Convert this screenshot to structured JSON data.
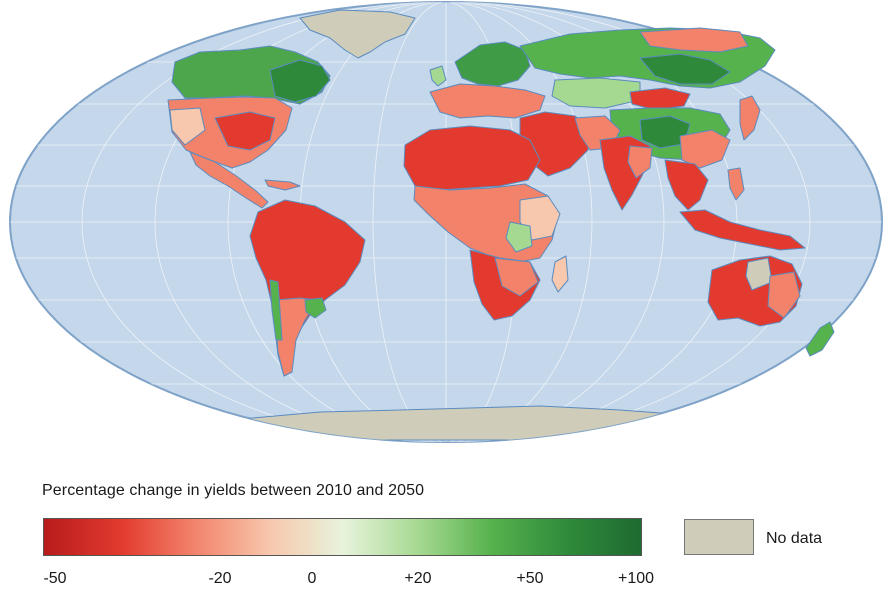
{
  "colors": {
    "ocean": "#c5d7ea",
    "ocean_border": "#7fa3c8",
    "coast": "#5b8bbf",
    "no_data": "#cfcdb9",
    "scale": [
      "#b71c1c",
      "#e23a2e",
      "#f2826a",
      "#f7c8ad",
      "#e8f3dc",
      "#a5d890",
      "#55b24c",
      "#2e8a3a",
      "#1f6a31"
    ]
  },
  "legend": {
    "title": "Percentage change in yields between 2010 and 2050",
    "ticks": [
      "-50",
      "-20",
      "0",
      "+20",
      "+50",
      "+100"
    ],
    "no_data_label": "No data"
  },
  "regions": [
    {
      "name": "Canada",
      "value": "+20 to +50"
    },
    {
      "name": "United States",
      "value": "-20 to 0"
    },
    {
      "name": "Central America",
      "value": "-20"
    },
    {
      "name": "South America north",
      "value": "-50 to -20"
    },
    {
      "name": "South America south",
      "value": "-20 to +20"
    },
    {
      "name": "Greenland",
      "value": "No data"
    },
    {
      "name": "Europe north",
      "value": "+20 to +50"
    },
    {
      "name": "Europe south",
      "value": "-20 to 0"
    },
    {
      "name": "Russia",
      "value": "+20 to +100"
    },
    {
      "name": "North Africa",
      "value": "-50 to -20"
    },
    {
      "name": "Sub-Saharan Africa",
      "value": "-20 to 0"
    },
    {
      "name": "Southern Africa",
      "value": "-50 to -20"
    },
    {
      "name": "Middle East",
      "value": "-50 to -20"
    },
    {
      "name": "India",
      "value": "-50 to -20"
    },
    {
      "name": "China",
      "value": "-20 to +20"
    },
    {
      "name": "Southeast Asia",
      "value": "-50 to -20"
    },
    {
      "name": "Australia",
      "value": "-50 to -20"
    },
    {
      "name": "New Zealand",
      "value": "+20 to +50"
    },
    {
      "name": "Antarctica",
      "value": "No data"
    }
  ]
}
